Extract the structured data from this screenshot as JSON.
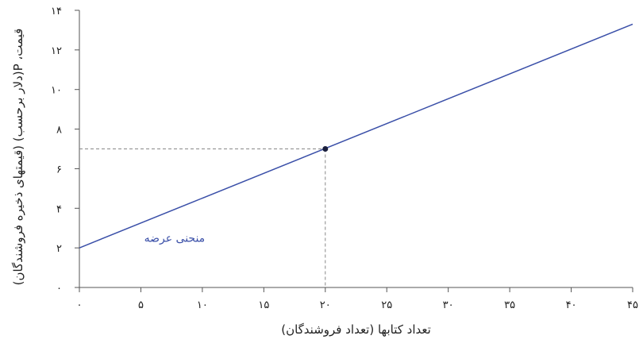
{
  "chart_data": {
    "type": "line",
    "title": "",
    "xlabel": "تعداد کتابها (تعداد فروشندگان)",
    "ylabel": "قیمت، P(دلار برحسب) (قیمتهای ذخیره فروشندگان)",
    "xlim": [
      0,
      45
    ],
    "ylim": [
      0,
      14
    ],
    "x_ticks": [
      0,
      5,
      10,
      15,
      20,
      25,
      30,
      35,
      40,
      45
    ],
    "y_ticks": [
      0,
      2,
      4,
      6,
      8,
      10,
      12,
      14
    ],
    "x_tick_labels": [
      "۰",
      "۵",
      "۱۰",
      "۱۵",
      "۲۰",
      "۲۵",
      "۳۰",
      "۳۵",
      "۴۰",
      "۴۵"
    ],
    "y_tick_labels": [
      "۰",
      "۲",
      "۴",
      "۶",
      "۸",
      "۱۰",
      "۱۲",
      "۱۴"
    ],
    "grid": false,
    "series": [
      {
        "name": "منحنی عرضه",
        "x": [
          0,
          45
        ],
        "y": [
          2,
          13.3
        ],
        "color": "#3a4fa8"
      }
    ],
    "highlight_point": {
      "x": 20,
      "y": 7,
      "color": "#1a1f3d"
    },
    "annotation": {
      "text": "منحنی عرضه",
      "x": 8,
      "y": 2.5,
      "color": "#3a4fa8"
    }
  }
}
